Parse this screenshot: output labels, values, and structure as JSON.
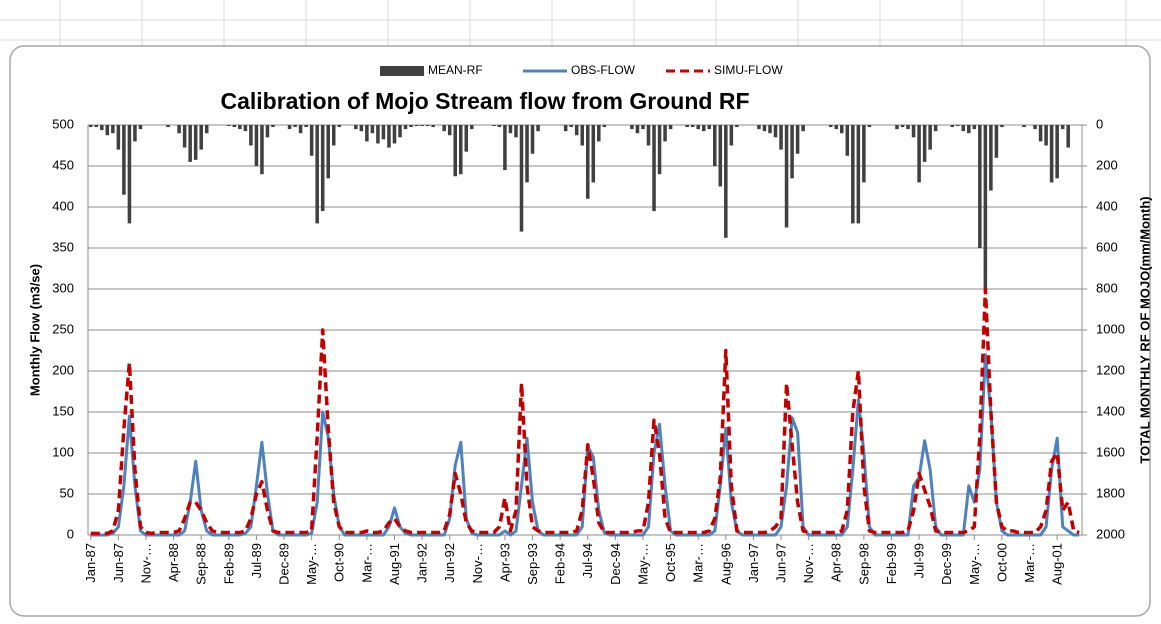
{
  "chart_data": {
    "type": "combo",
    "title": "Calibration of Mojo Stream flow from Ground RF",
    "y_label": "Monthly Flow (m3/se)",
    "y2_label": "TOTAL MONTHLY RF OF MOJO(mm/Month)",
    "categories": [
      "Jan-87",
      null,
      null,
      null,
      null,
      "Jun-87",
      null,
      null,
      null,
      null,
      "Nov-…",
      null,
      null,
      null,
      null,
      "Apr-88",
      null,
      null,
      null,
      null,
      "Sep-88",
      null,
      null,
      null,
      null,
      "Feb-89",
      null,
      null,
      null,
      null,
      "Jul-89",
      null,
      null,
      null,
      null,
      "Dec-89",
      null,
      null,
      null,
      null,
      "May-…",
      null,
      null,
      null,
      null,
      "Oct-90",
      null,
      null,
      null,
      null,
      "Mar-…",
      null,
      null,
      null,
      null,
      "Aug-91",
      null,
      null,
      null,
      null,
      "Jan-92",
      null,
      null,
      null,
      null,
      "Jun-92",
      null,
      null,
      null,
      null,
      "Nov-…",
      null,
      null,
      null,
      null,
      "Apr-93",
      null,
      null,
      null,
      null,
      "Sep-93",
      null,
      null,
      null,
      null,
      "Feb-94",
      null,
      null,
      null,
      null,
      "Jul-94",
      null,
      null,
      null,
      null,
      "Dec-94",
      null,
      null,
      null,
      null,
      "May-…",
      null,
      null,
      null,
      null,
      "Oct-95",
      null,
      null,
      null,
      null,
      "Mar-…",
      null,
      null,
      null,
      null,
      "Aug-96",
      null,
      null,
      null,
      null,
      "Jan-97",
      null,
      null,
      null,
      null,
      "Jun-97",
      null,
      null,
      null,
      null,
      "Nov-…",
      null,
      null,
      null,
      null,
      "Apr-98",
      null,
      null,
      null,
      null,
      "Sep-98",
      null,
      null,
      null,
      null,
      "Feb-99",
      null,
      null,
      null,
      null,
      "Jul-99",
      null,
      null,
      null,
      null,
      "Dec-99",
      null,
      null,
      null,
      null,
      "May-…",
      null,
      null,
      null,
      null,
      "Oct-00",
      null,
      null,
      null,
      null,
      "Mar-…",
      null,
      null,
      null,
      null,
      "Aug-01",
      null,
      null,
      null,
      null
    ],
    "series": [
      {
        "name": "MEAN-RF",
        "type": "bar",
        "axis": "y2",
        "color": "#404040",
        "values": [
          10,
          10,
          25,
          50,
          40,
          120,
          340,
          480,
          80,
          20,
          0,
          0,
          0,
          0,
          10,
          0,
          40,
          110,
          180,
          170,
          120,
          40,
          0,
          0,
          0,
          5,
          10,
          20,
          30,
          100,
          200,
          240,
          60,
          10,
          0,
          0,
          20,
          10,
          40,
          10,
          150,
          480,
          420,
          260,
          100,
          10,
          0,
          0,
          20,
          30,
          80,
          40,
          90,
          70,
          110,
          90,
          60,
          20,
          10,
          5,
          5,
          5,
          10,
          0,
          30,
          50,
          250,
          240,
          130,
          20,
          0,
          0,
          0,
          5,
          10,
          220,
          40,
          60,
          520,
          280,
          140,
          30,
          0,
          0,
          0,
          0,
          30,
          10,
          50,
          100,
          360,
          280,
          80,
          10,
          0,
          0,
          0,
          0,
          20,
          40,
          20,
          100,
          420,
          240,
          80,
          20,
          0,
          0,
          10,
          10,
          20,
          30,
          20,
          200,
          300,
          550,
          100,
          10,
          0,
          0,
          0,
          20,
          30,
          40,
          60,
          120,
          500,
          260,
          140,
          30,
          0,
          0,
          0,
          0,
          10,
          20,
          40,
          150,
          480,
          480,
          280,
          10,
          0,
          0,
          0,
          0,
          20,
          10,
          20,
          60,
          280,
          180,
          120,
          30,
          0,
          0,
          10,
          5,
          30,
          40,
          20,
          600,
          800,
          320,
          160,
          10,
          0,
          0,
          0,
          10,
          0,
          20,
          80,
          100,
          280,
          260,
          20,
          110,
          0,
          0
        ]
      },
      {
        "name": "OBS-FLOW",
        "type": "line",
        "line_style": "solid",
        "color": "#4f81bd",
        "values": [
          0,
          0,
          0,
          0,
          2,
          10,
          60,
          145,
          60,
          5,
          0,
          0,
          0,
          0,
          0,
          0,
          0,
          5,
          40,
          90,
          30,
          5,
          0,
          0,
          0,
          0,
          0,
          0,
          2,
          10,
          60,
          113,
          50,
          5,
          0,
          0,
          0,
          0,
          0,
          0,
          2,
          40,
          150,
          120,
          50,
          10,
          0,
          0,
          0,
          0,
          0,
          0,
          0,
          0,
          10,
          33,
          10,
          2,
          0,
          0,
          0,
          0,
          0,
          0,
          0,
          20,
          85,
          113,
          20,
          2,
          0,
          0,
          0,
          0,
          0,
          5,
          0,
          5,
          60,
          118,
          40,
          5,
          0,
          0,
          0,
          0,
          0,
          0,
          0,
          10,
          108,
          95,
          30,
          3,
          0,
          0,
          0,
          0,
          0,
          0,
          0,
          10,
          100,
          135,
          60,
          5,
          0,
          0,
          0,
          0,
          0,
          0,
          0,
          5,
          60,
          130,
          40,
          5,
          0,
          0,
          0,
          0,
          0,
          0,
          0,
          10,
          60,
          143,
          125,
          10,
          0,
          0,
          0,
          0,
          0,
          0,
          0,
          10,
          80,
          165,
          100,
          10,
          0,
          0,
          0,
          0,
          0,
          0,
          0,
          60,
          70,
          115,
          80,
          10,
          0,
          0,
          0,
          0,
          0,
          60,
          40,
          80,
          220,
          150,
          40,
          5,
          0,
          0,
          0,
          0,
          0,
          0,
          0,
          10,
          80,
          118,
          10,
          5,
          0,
          0
        ]
      },
      {
        "name": "SIMU-FLOW",
        "type": "line",
        "line_style": "dashed",
        "color": "#c00000",
        "values": [
          2,
          2,
          2,
          2,
          5,
          30,
          130,
          210,
          80,
          10,
          3,
          2,
          3,
          3,
          3,
          3,
          5,
          20,
          40,
          40,
          30,
          15,
          5,
          3,
          3,
          3,
          3,
          3,
          5,
          20,
          50,
          65,
          30,
          5,
          3,
          3,
          3,
          3,
          3,
          3,
          5,
          120,
          250,
          130,
          40,
          10,
          3,
          3,
          3,
          3,
          5,
          3,
          3,
          5,
          15,
          20,
          10,
          5,
          3,
          3,
          3,
          3,
          3,
          3,
          5,
          25,
          75,
          50,
          15,
          5,
          3,
          3,
          3,
          3,
          10,
          45,
          5,
          30,
          185,
          60,
          10,
          5,
          3,
          3,
          3,
          3,
          3,
          3,
          5,
          30,
          110,
          70,
          15,
          3,
          3,
          3,
          3,
          3,
          3,
          5,
          5,
          40,
          140,
          100,
          20,
          3,
          3,
          3,
          3,
          3,
          3,
          3,
          5,
          20,
          70,
          225,
          60,
          5,
          3,
          3,
          3,
          3,
          3,
          5,
          10,
          20,
          185,
          110,
          40,
          5,
          3,
          3,
          3,
          3,
          3,
          3,
          5,
          30,
          150,
          200,
          60,
          5,
          3,
          3,
          3,
          3,
          3,
          3,
          5,
          30,
          75,
          55,
          35,
          5,
          3,
          3,
          3,
          3,
          3,
          5,
          10,
          120,
          300,
          150,
          40,
          10,
          5,
          5,
          3,
          3,
          3,
          3,
          10,
          30,
          90,
          100,
          30,
          40,
          5,
          3
        ]
      }
    ],
    "ylim": [
      0,
      500
    ],
    "yticks": [
      0,
      50,
      100,
      150,
      200,
      250,
      300,
      350,
      400,
      450,
      500
    ],
    "y2lim": [
      0,
      2000
    ],
    "y2ticks": [
      0,
      200,
      400,
      600,
      800,
      1000,
      1200,
      1400,
      1600,
      1800,
      2000
    ],
    "y2_reversed": true,
    "grid": true,
    "legend": "top"
  }
}
